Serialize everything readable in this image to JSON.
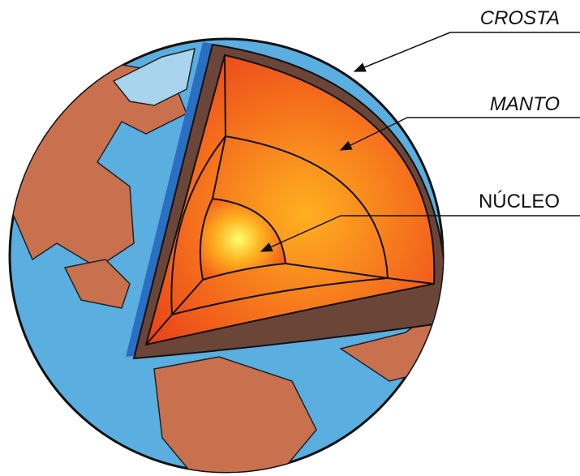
{
  "labels": {
    "crust": "CROSTA",
    "mantle": "MANTO",
    "core": "NÚCLEO"
  }
}
